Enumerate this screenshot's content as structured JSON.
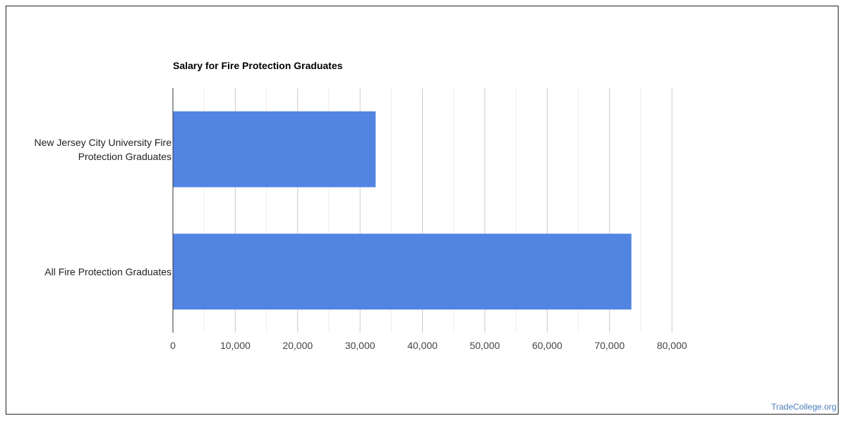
{
  "chart_data": {
    "type": "bar",
    "orientation": "horizontal",
    "title": "Salary for Fire Protection Graduates",
    "categories": [
      "New Jersey City University Fire Protection Graduates",
      "All Fire Protection Graduates"
    ],
    "category_label_lines": [
      [
        "New Jersey City University Fire",
        "Protection Graduates"
      ],
      [
        "All Fire Protection Graduates"
      ]
    ],
    "values": [
      32500,
      73500
    ],
    "xlim": [
      0,
      80000
    ],
    "x_ticks": [
      0,
      10000,
      20000,
      30000,
      40000,
      50000,
      60000,
      70000,
      80000
    ],
    "x_tick_labels": [
      "0",
      "10,000",
      "20,000",
      "30,000",
      "40,000",
      "50,000",
      "60,000",
      "70,000",
      "80,000"
    ],
    "xlabel": "",
    "ylabel": "",
    "grid": true,
    "legend": "none",
    "bar_color": "#5284e2"
  },
  "watermark": "TradeCollege.org"
}
